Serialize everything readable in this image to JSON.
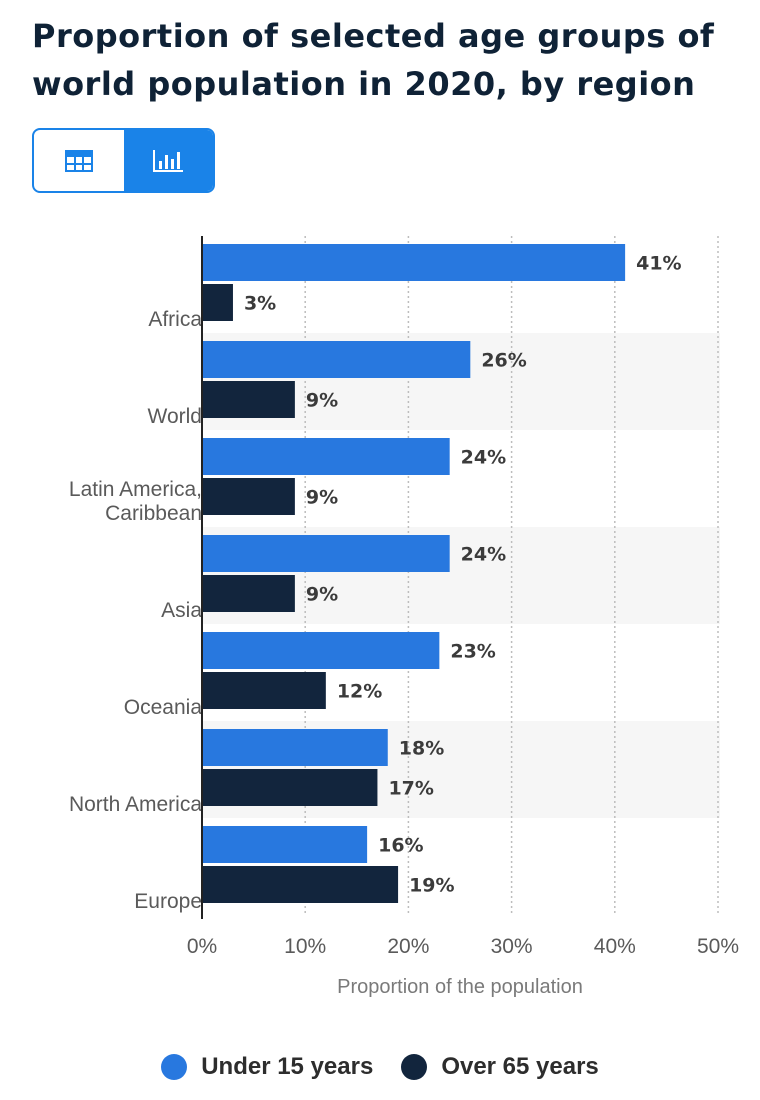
{
  "title": "Proportion of selected age groups of world population in 2020, by region",
  "view_toggle": {
    "table_icon": "table-icon",
    "chart_icon": "bar-chart-icon",
    "active": "chart"
  },
  "colors": {
    "under15": "#2878df",
    "over65": "#12253d",
    "toggle": "#1a83e8",
    "axis": "#222222",
    "grid": "#bdbdbd",
    "band": "#f6f6f6"
  },
  "chart_data": {
    "type": "bar",
    "orientation": "horizontal",
    "title": "Proportion of selected age groups of world population in 2020, by region",
    "xlabel": "Proportion of the population",
    "ylabel": "",
    "xlim": [
      0,
      50
    ],
    "xticks": [
      0,
      10,
      20,
      30,
      40,
      50
    ],
    "tick_suffix": "%",
    "categories": [
      "Africa",
      "World",
      "Latin America, Caribbean",
      "Asia",
      "Oceania",
      "North America",
      "Europe"
    ],
    "category_display": [
      [
        "Africa"
      ],
      [
        "World"
      ],
      [
        "Latin America,",
        "Caribbean"
      ],
      [
        "Asia"
      ],
      [
        "Oceania"
      ],
      [
        "North America"
      ],
      [
        "Europe"
      ]
    ],
    "series": [
      {
        "name": "Under 15 years",
        "values": [
          41,
          26,
          24,
          24,
          23,
          18,
          16
        ]
      },
      {
        "name": "Over 65 years",
        "values": [
          3,
          9,
          9,
          9,
          12,
          17,
          19
        ]
      }
    ],
    "value_suffix": "%",
    "grid": true,
    "legend_position": "bottom"
  },
  "legend": {
    "items": [
      {
        "label": "Under 15 years"
      },
      {
        "label": "Over 65 years"
      }
    ]
  }
}
